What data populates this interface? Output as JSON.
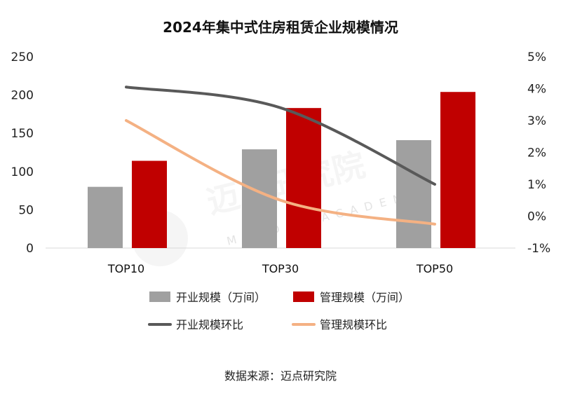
{
  "chart_data": {
    "type": "bar",
    "title": "2024年集中式住房租赁企业规模情况",
    "categories": [
      "TOP10",
      "TOP30",
      "TOP50"
    ],
    "series": [
      {
        "name": "开业规模（万间）",
        "type": "bar",
        "axis": "left",
        "color": "#a0a0a0",
        "values": [
          80,
          129,
          141
        ]
      },
      {
        "name": "管理规模（万间）",
        "type": "bar",
        "axis": "left",
        "color": "#c00000",
        "values": [
          114,
          183,
          204
        ]
      },
      {
        "name": "开业规模环比",
        "type": "line",
        "axis": "right",
        "color": "#595959",
        "values": [
          4.05,
          3.4,
          1.0
        ]
      },
      {
        "name": "管理规模环比",
        "type": "line",
        "axis": "right",
        "color": "#f4b183",
        "values": [
          3.0,
          0.5,
          -0.25
        ]
      }
    ],
    "y_left": {
      "min": 0,
      "max": 250,
      "ticks": [
        0,
        50,
        100,
        150,
        200,
        250
      ]
    },
    "y_right": {
      "min": -1,
      "max": 5,
      "ticks": [
        "5%",
        "4%",
        "3%",
        "2%",
        "1%",
        "0%",
        "-1%"
      ]
    },
    "legend_position": "bottom",
    "grid": false
  },
  "watermark": {
    "text": "迈点研究院",
    "subtext": "MEADIN ACADEMY"
  },
  "source_text": "数据来源：迈点研究院"
}
